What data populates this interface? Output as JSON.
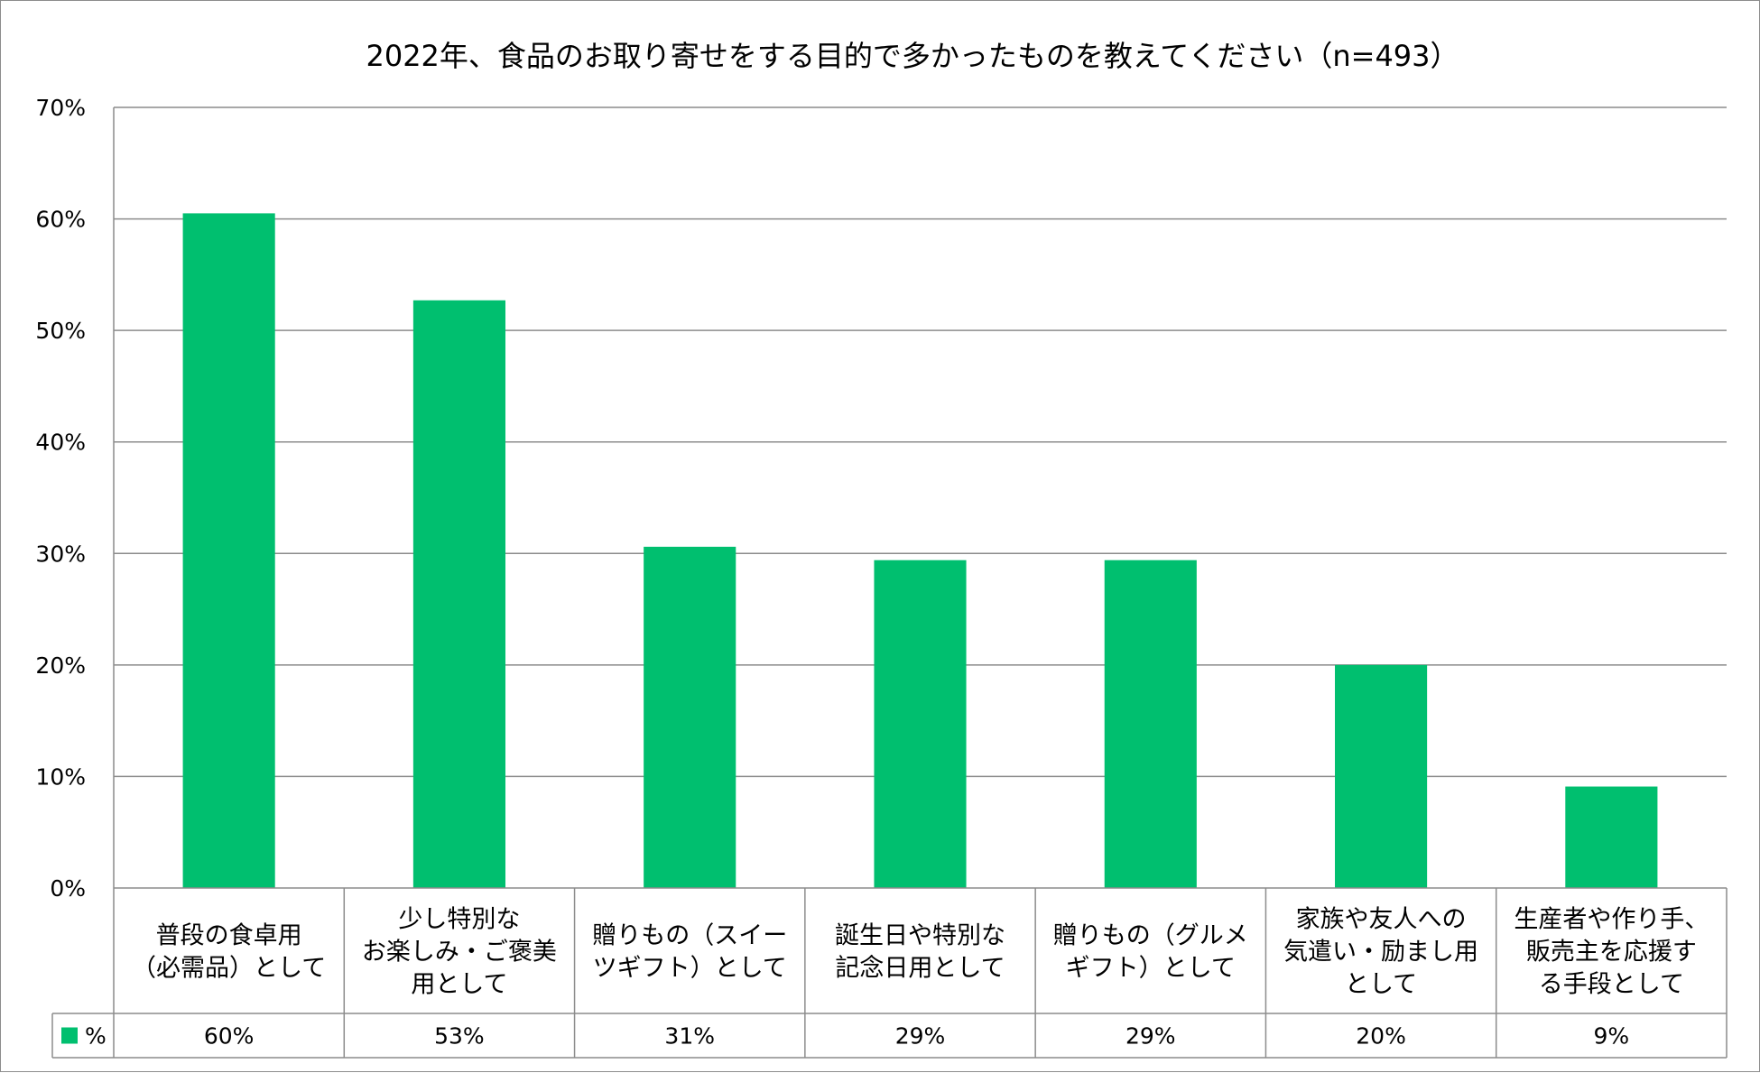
{
  "chart_data": {
    "type": "bar",
    "title": "2022年、食品のお取り寄せをする目的で多かったものを教えてください（n=493）",
    "xlabel": "",
    "ylabel": "",
    "ylim": [
      0,
      70
    ],
    "yticks": [
      0,
      10,
      20,
      30,
      40,
      50,
      60,
      70
    ],
    "ytick_labels": [
      "0%",
      "10%",
      "20%",
      "30%",
      "40%",
      "50%",
      "60%",
      "70%"
    ],
    "grid": true,
    "categories": [
      [
        "普段の食卓用",
        "（必需品）として"
      ],
      [
        "少し特別な",
        "お楽しみ・ご褒美",
        "用として"
      ],
      [
        "贈りもの（スイー",
        "ツギフト）として"
      ],
      [
        "誕生日や特別な",
        "記念日用として"
      ],
      [
        "贈りもの（グルメ",
        "ギフト）として"
      ],
      [
        "家族や友人への",
        "気遣い・励まし用",
        "として"
      ],
      [
        "生産者や作り手、",
        "販売主を応援す",
        "る手段として"
      ]
    ],
    "series": [
      {
        "name": "%",
        "color": "#00bf6f",
        "values": [
          60.5,
          52.7,
          30.6,
          29.4,
          29.4,
          20.0,
          9.1
        ],
        "labels": [
          "60%",
          "53%",
          "31%",
          "29%",
          "29%",
          "20%",
          "9%"
        ]
      }
    ],
    "data_table": true
  }
}
